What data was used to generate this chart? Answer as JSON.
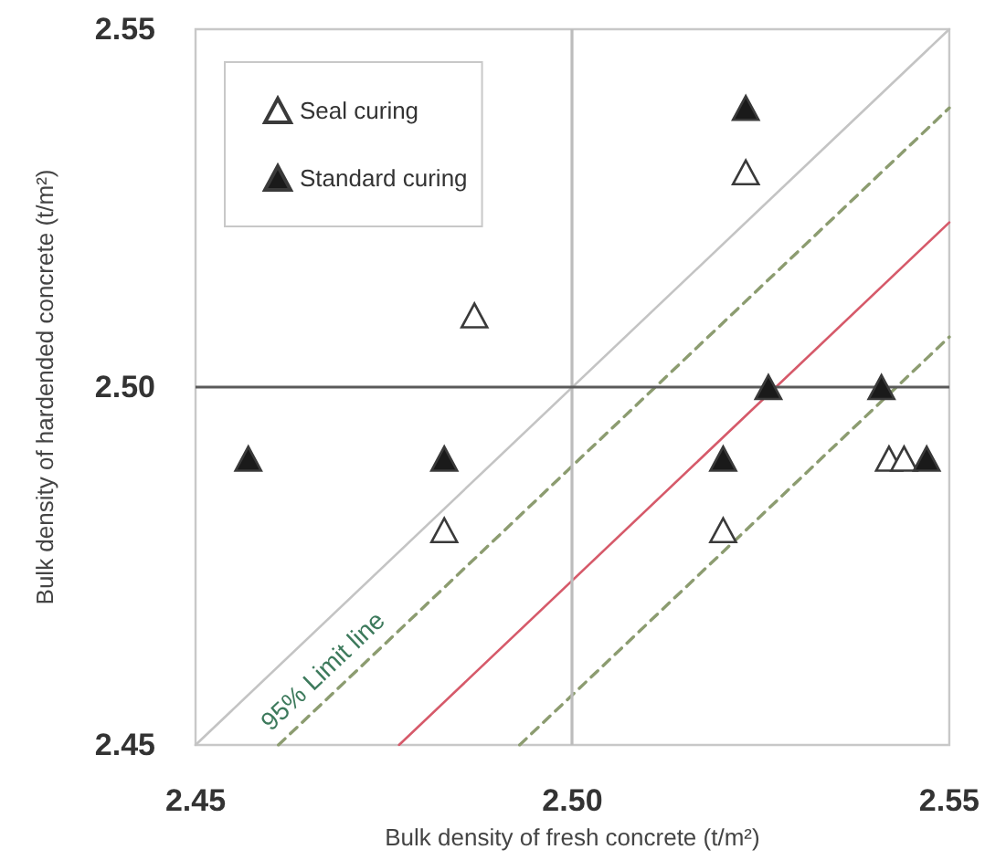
{
  "chart_data": {
    "type": "scatter",
    "xlabel": "Bulk density of fresh concrete (t/m²)",
    "ylabel": "Bulk density of hardended concrete (t/m²)",
    "xlim": [
      2.45,
      2.55
    ],
    "ylim": [
      2.45,
      2.55
    ],
    "xticks": [
      2.45,
      {
        "value": 2.5,
        "label": "2.50"
      },
      2.55
    ],
    "yticks": [
      2.45,
      {
        "value": 2.5,
        "label": "2.50"
      },
      2.55
    ],
    "marker": "triangle",
    "legend": "top left",
    "series": [
      {
        "name": "Seal curing",
        "color": "#ffffff",
        "x": [
          2.523,
          2.487,
          2.483,
          2.52,
          2.542,
          2.544
        ],
        "values": [
          2.53,
          2.51,
          2.48,
          2.48,
          2.49,
          2.49
        ]
      },
      {
        "name": "Standard curing",
        "color": "#1a1a1a",
        "x": [
          2.523,
          2.526,
          2.541,
          2.457,
          2.483,
          2.52,
          2.547
        ],
        "values": [
          2.539,
          2.5,
          2.5,
          2.49,
          2.49,
          2.49,
          2.49
        ]
      },
      {
        "type": "line",
        "color": "#c4c4c4",
        "marker": "none",
        "x": [
          2.45,
          2.55
        ],
        "values": [
          2.45,
          2.55
        ]
      },
      {
        "type": "line",
        "color": "#d65a6a",
        "marker": "none",
        "x": [
          2.477,
          2.55
        ],
        "values": [
          2.45,
          2.523
        ]
      },
      {
        "type": "line",
        "color": "#8c9c70",
        "marker": "none",
        "line_style": "dashed",
        "x": [
          2.461,
          2.55
        ],
        "values": [
          2.45,
          2.539
        ]
      },
      {
        "type": "line",
        "color": "#8c9c70",
        "marker": "none",
        "line_style": "dashed",
        "x": [
          2.493,
          2.55
        ],
        "values": [
          2.45,
          2.507
        ]
      }
    ],
    "ref_lines": [
      {
        "axis": "x",
        "value": 2.5,
        "color": "#bcbcbc"
      },
      {
        "axis": "y",
        "value": 2.5,
        "color": "#5a5a5a"
      }
    ],
    "annotations": [
      {
        "text": "95% Limit line",
        "x": 2.469,
        "y": 2.458
      }
    ]
  }
}
